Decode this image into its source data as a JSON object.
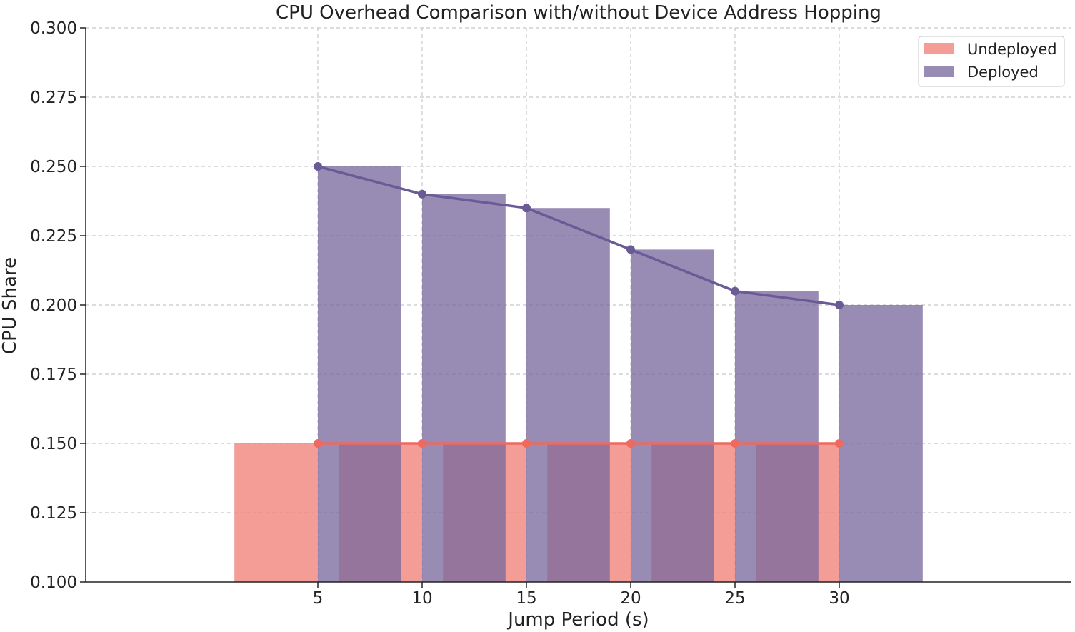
{
  "chart_data": {
    "type": "bar",
    "title": "CPU Overhead Comparison with/without Device Address Hopping",
    "xlabel": "Jump Period (s)",
    "ylabel": "CPU Share",
    "x": [
      5,
      10,
      15,
      20,
      25,
      30
    ],
    "x_ticks": [
      "5",
      "10",
      "15",
      "20",
      "25",
      "30"
    ],
    "y_ticks": [
      "0.100",
      "0.125",
      "0.150",
      "0.175",
      "0.200",
      "0.225",
      "0.250",
      "0.275",
      "0.300"
    ],
    "ylim": [
      0.1,
      0.3
    ],
    "series": [
      {
        "name": "Undeployed",
        "values": [
          0.15,
          0.15,
          0.15,
          0.15,
          0.15,
          0.15
        ],
        "color": "#f08178"
      },
      {
        "name": "Deployed",
        "values": [
          0.25,
          0.24,
          0.235,
          0.22,
          0.205,
          0.2
        ],
        "color": "#7b6a9f"
      }
    ],
    "line_colors": {
      "Undeployed": "#ee6a5e",
      "Deployed": "#6a5a96"
    },
    "grid": true,
    "legend_position": "top-right"
  }
}
